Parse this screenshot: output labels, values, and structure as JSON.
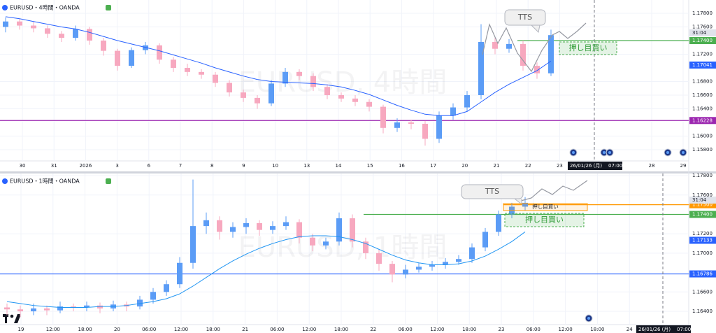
{
  "panels": [
    {
      "title": "EURUSD・4時間・OANDA",
      "watermark": "EURUSD, 4時間",
      "countdown": "31:04",
      "callout": "TTS",
      "zone_label": "押し目買い",
      "axis_labels": [
        {
          "text": "1.17800"
        },
        {
          "text": "1.17600"
        },
        {
          "text": "1.17400",
          "color": "#4caf50",
          "line": "segment"
        },
        {
          "text": "1.17200"
        },
        {
          "text": "1.17041",
          "color": "#2962ff"
        },
        {
          "text": "1.16800"
        },
        {
          "text": "1.16600"
        },
        {
          "text": "1.16400"
        },
        {
          "text": "1.16228",
          "color": "#9c27b0",
          "line": "full"
        },
        {
          "text": "1.16000"
        },
        {
          "text": "1.15800"
        }
      ],
      "time_labels": [
        "30",
        "31",
        "2026",
        "3",
        "6",
        "7",
        "8",
        "9",
        "10",
        "13",
        "14",
        "15",
        "16",
        "17",
        "20",
        "21",
        "22",
        "23",
        "28",
        "29"
      ],
      "date_box": "26/01/26 (月)",
      "date_time": "07:00",
      "up_color": "#5b9cf6",
      "down_color": "#f7a8bf",
      "ma_color": "#2962ff",
      "candles": [
        [
          1.176,
          1.1774,
          1.1752,
          1.1768
        ],
        [
          1.1768,
          1.1772,
          1.1756,
          1.1762
        ],
        [
          1.1762,
          1.1768,
          1.1752,
          1.1758
        ],
        [
          1.1758,
          1.1762,
          1.1744,
          1.175
        ],
        [
          1.175,
          1.1754,
          1.1738,
          1.1744
        ],
        [
          1.1744,
          1.1762,
          1.174,
          1.1757
        ],
        [
          1.1757,
          1.176,
          1.1734,
          1.174
        ],
        [
          1.174,
          1.1744,
          1.1718,
          1.1725
        ],
        [
          1.1725,
          1.1728,
          1.1696,
          1.1703
        ],
        [
          1.1703,
          1.173,
          1.17,
          1.1726
        ],
        [
          1.1726,
          1.1738,
          1.172,
          1.1733
        ],
        [
          1.1733,
          1.1736,
          1.1706,
          1.1712
        ],
        [
          1.1712,
          1.1716,
          1.1694,
          1.17
        ],
        [
          1.17,
          1.1706,
          1.1688,
          1.1694
        ],
        [
          1.1694,
          1.1698,
          1.1684,
          1.169
        ],
        [
          1.169,
          1.1694,
          1.1672,
          1.1678
        ],
        [
          1.1678,
          1.1682,
          1.1658,
          1.1664
        ],
        [
          1.1664,
          1.1668,
          1.165,
          1.1656
        ],
        [
          1.1656,
          1.166,
          1.164,
          1.1648
        ],
        [
          1.1648,
          1.1682,
          1.1644,
          1.1677
        ],
        [
          1.1677,
          1.17,
          1.1672,
          1.1694
        ],
        [
          1.1694,
          1.1698,
          1.1682,
          1.1688
        ],
        [
          1.1688,
          1.1692,
          1.1666,
          1.1672
        ],
        [
          1.1672,
          1.1676,
          1.1654,
          1.166
        ],
        [
          1.166,
          1.1664,
          1.165,
          1.1655
        ],
        [
          1.1655,
          1.166,
          1.1644,
          1.165
        ],
        [
          1.165,
          1.1654,
          1.1636,
          1.1643
        ],
        [
          1.1643,
          1.1646,
          1.1604,
          1.1612
        ],
        [
          1.1612,
          1.1626,
          1.1606,
          1.162
        ],
        [
          1.162,
          1.1624,
          1.161,
          1.1618
        ],
        [
          1.1618,
          1.1622,
          1.1586,
          1.1596
        ],
        [
          1.1596,
          1.1636,
          1.159,
          1.163
        ],
        [
          1.163,
          1.1648,
          1.1624,
          1.1642
        ],
        [
          1.1642,
          1.1666,
          1.1636,
          1.166
        ],
        [
          1.166,
          1.1764,
          1.1654,
          1.1738
        ],
        [
          1.1738,
          1.1744,
          1.172,
          1.1728
        ],
        [
          1.1728,
          1.1742,
          1.1722,
          1.1735
        ],
        [
          1.1735,
          1.174,
          1.1696,
          1.1703
        ],
        [
          1.1703,
          1.1708,
          1.1684,
          1.1692
        ],
        [
          1.1692,
          1.1756,
          1.1688,
          1.1748
        ]
      ],
      "ma": [
        1.1775,
        1.1772,
        1.1768,
        1.1764,
        1.176,
        1.1757,
        1.1752,
        1.1746,
        1.174,
        1.1735,
        1.173,
        1.1725,
        1.1719,
        1.1713,
        1.1707,
        1.17,
        1.1694,
        1.1688,
        1.1683,
        1.168,
        1.1679,
        1.1678,
        1.1677,
        1.1675,
        1.1672,
        1.1667,
        1.1661,
        1.1653,
        1.1645,
        1.1638,
        1.1632,
        1.163,
        1.163,
        1.1636,
        1.165,
        1.1664,
        1.1676,
        1.1686,
        1.1696,
        1.171
      ]
    },
    {
      "title": "EURUSD・1時間・OANDA",
      "watermark": "EURUSD, 1時間",
      "countdown": "31:04",
      "callout": "TTS",
      "zone_label": "押し目買い",
      "order_label": "押し目買い",
      "axis_labels": [
        {
          "text": "1.17800"
        },
        {
          "text": "1.17600"
        },
        {
          "text": "1.17500",
          "color": "#ff9800",
          "line": "segment"
        },
        {
          "text": "1.17400",
          "color": "#4caf50",
          "line": "segment"
        },
        {
          "text": "1.17200"
        },
        {
          "text": "1.17133",
          "color": "#2962ff"
        },
        {
          "text": "1.17000"
        },
        {
          "text": "1.16786",
          "color": "#2962ff",
          "line": "full"
        },
        {
          "text": "1.16600"
        },
        {
          "text": "1.16400"
        }
      ],
      "time_labels": [
        "19",
        "12:00",
        "18:00",
        "20",
        "06:00",
        "12:00",
        "18:00",
        "21",
        "06:00",
        "12:00",
        "18:00",
        "22",
        "06:00",
        "12:00",
        "18:00",
        "23",
        "06:00",
        "12:00",
        "18:00",
        "24"
      ],
      "date_box": "26/01/26 (月)",
      "date_time": "07:00",
      "up_color": "#5b9cf6",
      "down_color": "#f7a8bf",
      "ma_color": "#2196f3",
      "candles": [
        [
          1.1644,
          1.1648,
          1.1636,
          1.1642
        ],
        [
          1.1642,
          1.1646,
          1.1634,
          1.164
        ],
        [
          1.164,
          1.1648,
          1.1636,
          1.1643
        ],
        [
          1.1643,
          1.1646,
          1.1636,
          1.1641
        ],
        [
          1.1641,
          1.165,
          1.1638,
          1.1645
        ],
        [
          1.1645,
          1.1648,
          1.164,
          1.1644
        ],
        [
          1.1644,
          1.165,
          1.164,
          1.1646
        ],
        [
          1.1646,
          1.1649,
          1.1638,
          1.1643
        ],
        [
          1.1643,
          1.1651,
          1.164,
          1.1647
        ],
        [
          1.1647,
          1.165,
          1.164,
          1.1645
        ],
        [
          1.1645,
          1.1656,
          1.1642,
          1.1652
        ],
        [
          1.1652,
          1.1664,
          1.1648,
          1.166
        ],
        [
          1.166,
          1.1672,
          1.1656,
          1.1668
        ],
        [
          1.1668,
          1.1696,
          1.1664,
          1.169
        ],
        [
          1.169,
          1.1776,
          1.1684,
          1.1728
        ],
        [
          1.1728,
          1.1742,
          1.172,
          1.1734
        ],
        [
          1.1734,
          1.1738,
          1.1714,
          1.1722
        ],
        [
          1.1722,
          1.1732,
          1.1716,
          1.1727
        ],
        [
          1.1727,
          1.1736,
          1.172,
          1.1731
        ],
        [
          1.1731,
          1.1734,
          1.1718,
          1.1724
        ],
        [
          1.1724,
          1.1733,
          1.172,
          1.1728
        ],
        [
          1.1728,
          1.1738,
          1.1724,
          1.1732
        ],
        [
          1.1732,
          1.1735,
          1.171,
          1.1716
        ],
        [
          1.1716,
          1.172,
          1.1702,
          1.1708
        ],
        [
          1.1708,
          1.1716,
          1.1704,
          1.1712
        ],
        [
          1.1712,
          1.1742,
          1.1708,
          1.1736
        ],
        [
          1.1736,
          1.174,
          1.1706,
          1.1712
        ],
        [
          1.1712,
          1.1716,
          1.1694,
          1.17
        ],
        [
          1.17,
          1.1704,
          1.1682,
          1.1689
        ],
        [
          1.1689,
          1.1692,
          1.167,
          1.1678
        ],
        [
          1.1678,
          1.1688,
          1.1674,
          1.1683
        ],
        [
          1.1683,
          1.169,
          1.168,
          1.1686
        ],
        [
          1.1686,
          1.1692,
          1.1682,
          1.1688
        ],
        [
          1.1688,
          1.1695,
          1.1684,
          1.1691
        ],
        [
          1.1691,
          1.1698,
          1.1688,
          1.1694
        ],
        [
          1.1694,
          1.171,
          1.169,
          1.1706
        ],
        [
          1.1706,
          1.1726,
          1.1702,
          1.1722
        ],
        [
          1.1722,
          1.1744,
          1.1718,
          1.174
        ],
        [
          1.174,
          1.1752,
          1.1736,
          1.1748
        ],
        [
          1.1748,
          1.1758,
          1.1744,
          1.1752
        ]
      ],
      "ma": [
        1.165,
        1.1648,
        1.1646,
        1.1645,
        1.1644,
        1.1644,
        1.1644,
        1.1645,
        1.1645,
        1.1646,
        1.1648,
        1.165,
        1.1653,
        1.1658,
        1.1666,
        1.1675,
        1.1684,
        1.1692,
        1.1699,
        1.1705,
        1.171,
        1.1714,
        1.1717,
        1.1718,
        1.1718,
        1.1717,
        1.1714,
        1.171,
        1.1704,
        1.1698,
        1.1693,
        1.169,
        1.1688,
        1.1688,
        1.1689,
        1.1692,
        1.1697,
        1.1704,
        1.1712,
        1.1722
      ]
    }
  ]
}
